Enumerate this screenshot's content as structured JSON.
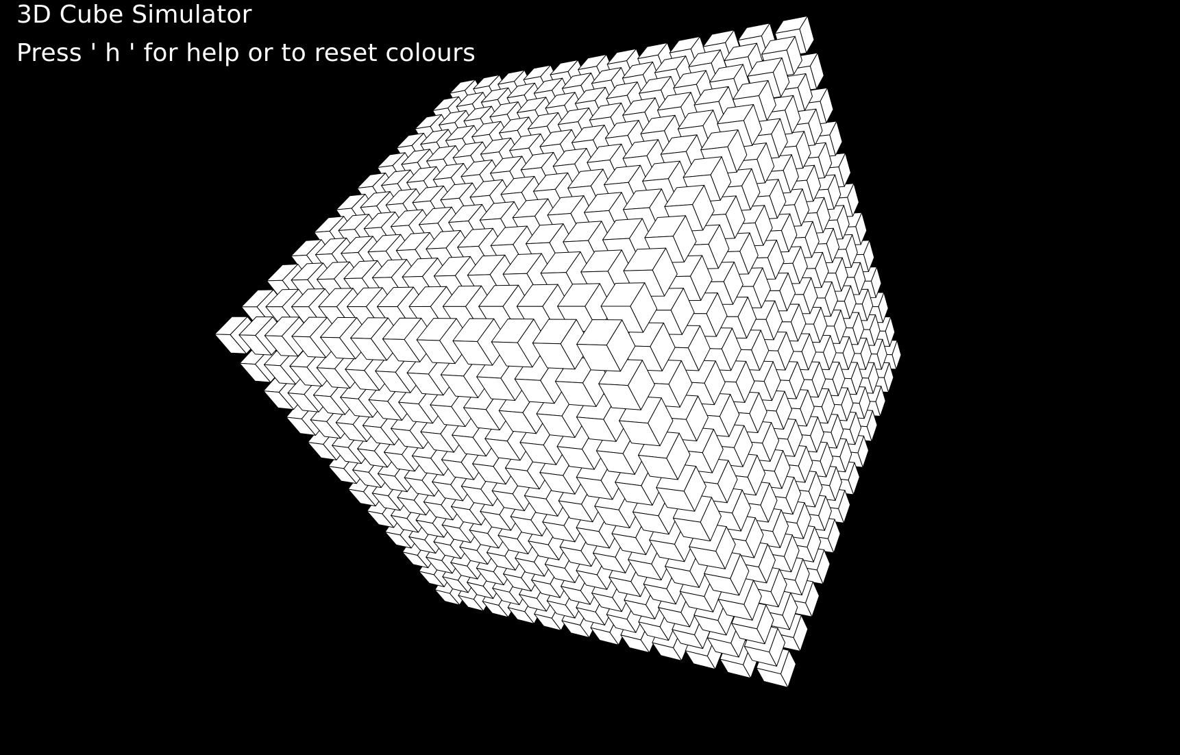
{
  "window": {
    "background": "#000000"
  },
  "hud": {
    "title": "3D Cube Simulator",
    "help_text": "Press ' h ' for help or to reset colours"
  },
  "scene": {
    "object": "cube-of-cubes",
    "grid_size": 12,
    "cubelet_face_color": "#ffffff",
    "cubelet_edge_color": "#000000"
  }
}
